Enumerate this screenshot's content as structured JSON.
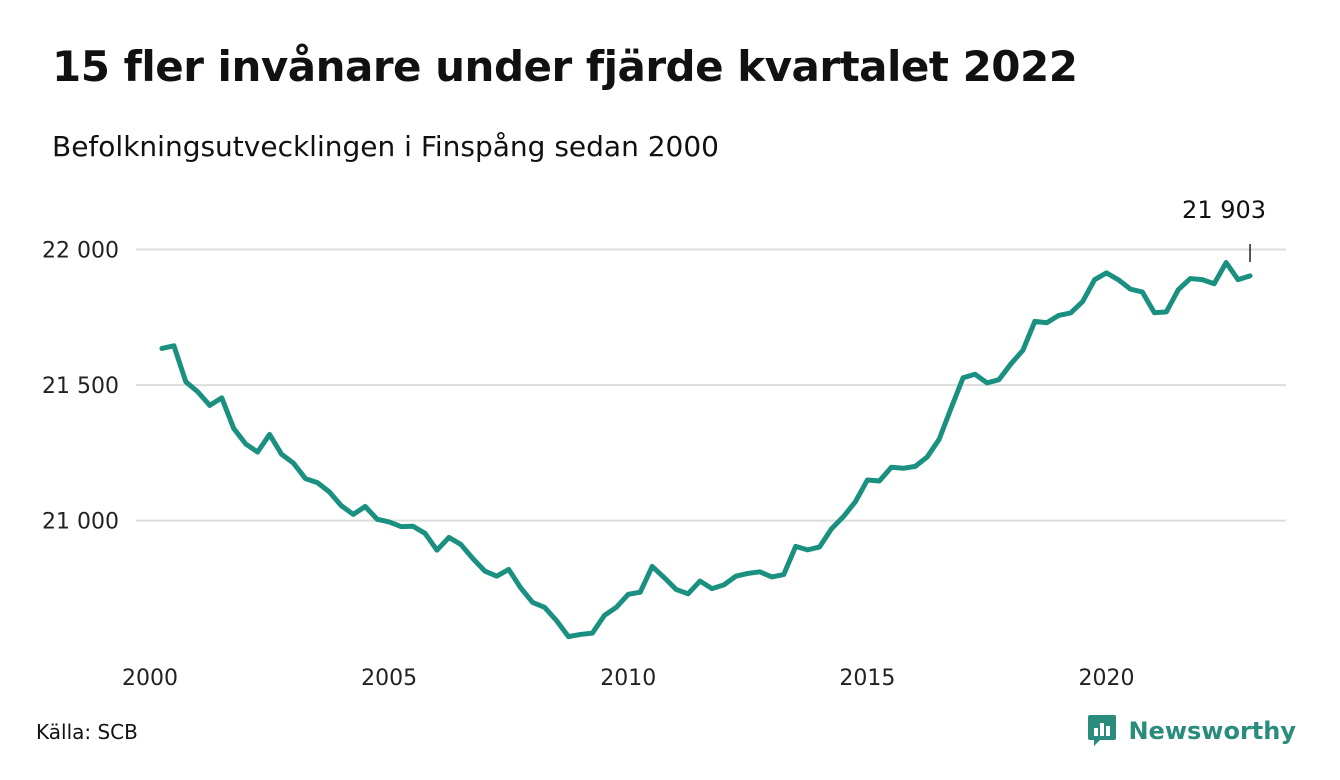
{
  "header": {
    "title": "15 fler invånare under fjärde kvartalet 2022",
    "subtitle": "Befolkningsutvecklingen i Finspång sedan 2000"
  },
  "footer": {
    "source": "Källa: SCB",
    "brand": "Newsworthy"
  },
  "colors": {
    "line": "#1a9080",
    "brand": "#2a8c7c",
    "grid": "#dddddd"
  },
  "chart_data": {
    "type": "line",
    "title": "15 fler invånare under fjärde kvartalet 2022",
    "subtitle": "Befolkningsutvecklingen i Finspång sedan 2000",
    "xlabel": "",
    "ylabel": "",
    "xlim": [
      2000,
      2023.25
    ],
    "ylim": [
      20530,
      22050
    ],
    "grid": true,
    "legend": "none",
    "x_ticks": [
      {
        "value": 2000,
        "label": "2000"
      },
      {
        "value": 2005,
        "label": "2005"
      },
      {
        "value": 2010,
        "label": "2010"
      },
      {
        "value": 2015,
        "label": "2015"
      },
      {
        "value": 2020,
        "label": "2020"
      }
    ],
    "y_ticks": [
      {
        "value": 21000,
        "label": "21 000"
      },
      {
        "value": 21500,
        "label": "21 500"
      },
      {
        "value": 22000,
        "label": "22 000"
      }
    ],
    "annotation": {
      "x": 2023.0,
      "y": 21903,
      "label": "21 903"
    },
    "x": [
      2000.25,
      2000.5,
      2000.75,
      2001.0,
      2001.25,
      2001.5,
      2001.75,
      2002.0,
      2002.25,
      2002.5,
      2002.75,
      2003.0,
      2003.25,
      2003.5,
      2003.75,
      2004.0,
      2004.25,
      2004.5,
      2004.75,
      2005.0,
      2005.25,
      2005.5,
      2005.75,
      2006.0,
      2006.25,
      2006.5,
      2006.75,
      2007.0,
      2007.25,
      2007.5,
      2007.75,
      2008.0,
      2008.25,
      2008.5,
      2008.75,
      2009.0,
      2009.25,
      2009.5,
      2009.75,
      2010.0,
      2010.25,
      2010.5,
      2010.75,
      2011.0,
      2011.25,
      2011.5,
      2011.75,
      2012.0,
      2012.25,
      2012.5,
      2012.75,
      2013.0,
      2013.25,
      2013.5,
      2013.75,
      2014.0,
      2014.25,
      2014.5,
      2014.75,
      2015.0,
      2015.25,
      2015.5,
      2015.75,
      2016.0,
      2016.25,
      2016.5,
      2016.75,
      2017.0,
      2017.25,
      2017.5,
      2017.75,
      2018.0,
      2018.25,
      2018.5,
      2018.75,
      2019.0,
      2019.25,
      2019.5,
      2019.75,
      2020.0,
      2020.25,
      2020.5,
      2020.75,
      2021.0,
      2021.25,
      2021.5,
      2021.75,
      2022.0,
      2022.25,
      2022.5,
      2022.75,
      2023.0
    ],
    "series": [
      {
        "values": [
          21635,
          21645,
          21512,
          21475,
          21425,
          21453,
          21340,
          21283,
          21253,
          21318,
          21245,
          21212,
          21155,
          21140,
          21106,
          21055,
          21023,
          21052,
          21005,
          20995,
          20978,
          20979,
          20953,
          20891,
          20938,
          20912,
          20860,
          20814,
          20795,
          20820,
          20752,
          20698,
          20680,
          20631,
          20572,
          20580,
          20585,
          20650,
          20680,
          20728,
          20736,
          20831,
          20790,
          20746,
          20730,
          20777,
          20749,
          20763,
          20795,
          20805,
          20811,
          20792,
          20801,
          20905,
          20892,
          20903,
          20970,
          21015,
          21070,
          21150,
          21146,
          21197,
          21193,
          21200,
          21235,
          21300,
          21415,
          21527,
          21540,
          21508,
          21520,
          21578,
          21628,
          21735,
          21730,
          21757,
          21766,
          21808,
          21889,
          21914,
          21888,
          21854,
          21843,
          21767,
          21770,
          21852,
          21893,
          21889,
          21874,
          21952,
          21889,
          21903
        ]
      }
    ]
  }
}
